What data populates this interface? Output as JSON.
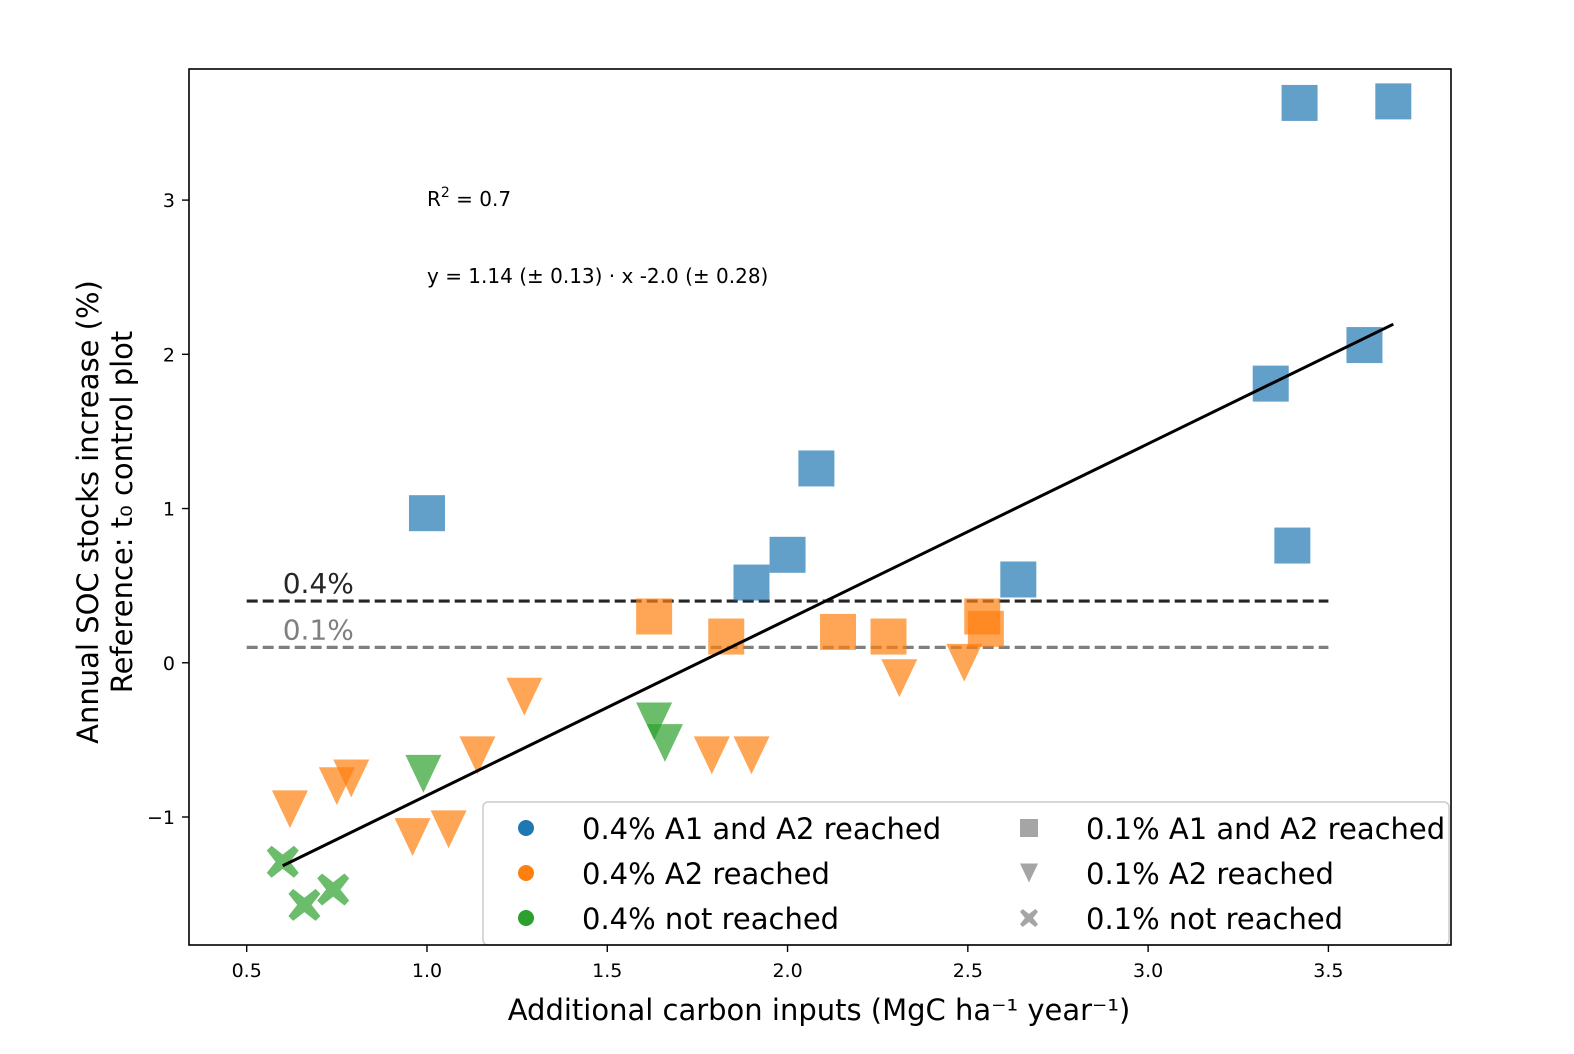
{
  "chart_data": {
    "type": "scatter",
    "xlabel": "Additional carbon inputs (MgC ha⁻¹ year⁻¹)",
    "ylabel_line1": "Annual SOC stocks increase (%)",
    "ylabel_line2": "Reference: t₀ control plot",
    "xlim": [
      0.34,
      3.84
    ],
    "ylim": [
      -1.83,
      3.85
    ],
    "xticks": [
      0.5,
      1.0,
      1.5,
      2.0,
      2.5,
      3.0,
      3.5
    ],
    "xtick_labels": [
      "0.5",
      "1.0",
      "1.5",
      "2.0",
      "2.5",
      "3.0",
      "3.5"
    ],
    "yticks": [
      -1,
      0,
      1,
      2,
      3
    ],
    "ytick_labels": [
      "−1",
      "0",
      "1",
      "2",
      "3"
    ],
    "grid": false,
    "annotations": {
      "r2_base": "R",
      "r2_sup": "2",
      "r2_value": " = 0.7",
      "equation": "y = 1.14 (± 0.13) · x -2.0 (± 0.28)"
    },
    "reference_lines": [
      {
        "label": "0.4%",
        "y": 0.4,
        "x_start": 0.5,
        "x_end": 3.5,
        "color": "#262626"
      },
      {
        "label": "0.1%",
        "y": 0.1,
        "x_start": 0.5,
        "x_end": 3.5,
        "color": "#7f7f7f"
      }
    ],
    "regression": {
      "x_start": 0.6,
      "x_end": 3.68,
      "slope": 1.14,
      "intercept": -2.0,
      "color": "#000000"
    },
    "colors": {
      "blue": "#1f77b4",
      "orange": "#ff7f0e",
      "green": "#2ca02c",
      "gray": "#7f7f7f"
    },
    "series": [
      {
        "name": "0.4% A1 and A2 reached",
        "color": "#1f77b4",
        "marker": "square",
        "points": [
          [
            1.0,
            0.97
          ],
          [
            1.9,
            0.52
          ],
          [
            2.0,
            0.7
          ],
          [
            2.08,
            1.26
          ],
          [
            2.64,
            0.54
          ],
          [
            3.34,
            1.81
          ],
          [
            3.4,
            0.76
          ],
          [
            3.42,
            3.63
          ],
          [
            3.6,
            2.06
          ],
          [
            3.68,
            3.64
          ]
        ]
      },
      {
        "name": "0.4% A2 reached",
        "color": "#ff7f0e",
        "marker": "square",
        "points": [
          [
            1.63,
            0.3
          ],
          [
            1.83,
            0.17
          ],
          [
            2.14,
            0.2
          ],
          [
            2.28,
            0.17
          ],
          [
            2.54,
            0.3
          ],
          [
            2.55,
            0.22
          ]
        ]
      },
      {
        "name": "0.4% A2 reached",
        "color": "#ff7f0e",
        "marker": "triangle",
        "points": [
          [
            0.62,
            -0.95
          ],
          [
            0.75,
            -0.8
          ],
          [
            0.79,
            -0.75
          ],
          [
            0.96,
            -1.13
          ],
          [
            1.06,
            -1.08
          ],
          [
            1.14,
            -0.6
          ],
          [
            1.27,
            -0.22
          ],
          [
            1.79,
            -0.6
          ],
          [
            1.9,
            -0.6
          ],
          [
            2.31,
            -0.1
          ],
          [
            2.49,
            0.0
          ]
        ]
      },
      {
        "name": "0.4% not reached",
        "color": "#2ca02c",
        "marker": "triangle",
        "points": [
          [
            0.99,
            -0.72
          ],
          [
            1.63,
            -0.38
          ],
          [
            1.66,
            -0.52
          ]
        ]
      },
      {
        "name": "0.4% not reached",
        "color": "#2ca02c",
        "marker": "x",
        "points": [
          [
            0.6,
            -1.29
          ],
          [
            0.66,
            -1.57
          ],
          [
            0.74,
            -1.47
          ]
        ]
      }
    ],
    "legend": {
      "placement": "lower-right",
      "color_entries": [
        {
          "label": "0.4% A1 and A2 reached",
          "color": "#1f77b4"
        },
        {
          "label": "0.4% A2 reached",
          "color": "#ff7f0e"
        },
        {
          "label": "0.4% not reached",
          "color": "#2ca02c"
        }
      ],
      "marker_entries": [
        {
          "label": "0.1% A1 and A2 reached",
          "marker": "square",
          "color": "#7f7f7f"
        },
        {
          "label": "0.1% A2 reached",
          "marker": "triangle",
          "color": "#7f7f7f"
        },
        {
          "label": "0.1% not reached",
          "marker": "x",
          "color": "#7f7f7f"
        }
      ]
    }
  }
}
